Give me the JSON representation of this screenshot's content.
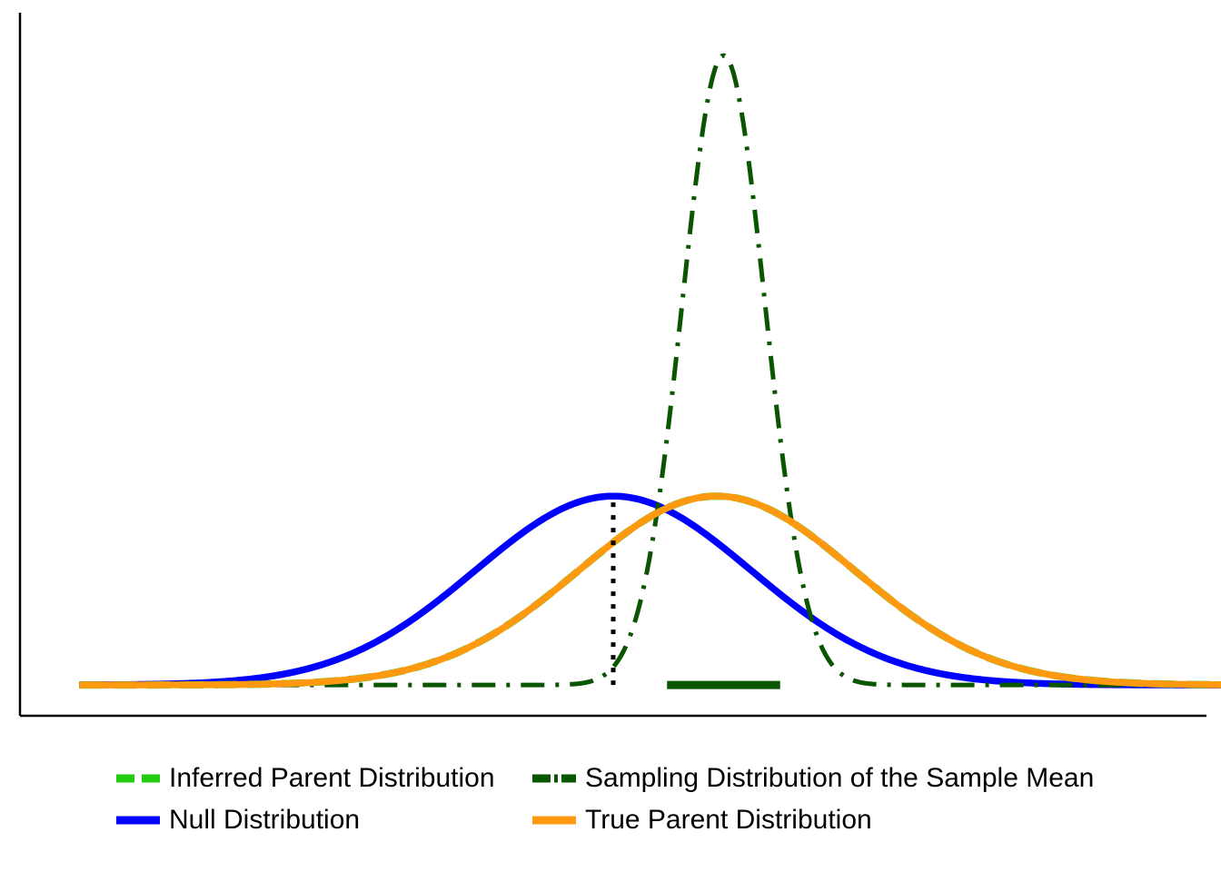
{
  "chart_data": {
    "type": "line",
    "title": "",
    "xlabel": "",
    "ylabel": "",
    "axes": {
      "ticks": "none",
      "grid": false
    },
    "xlim": [
      -4.3,
      4.3
    ],
    "ylim": [
      -0.065,
      1.42
    ],
    "legend": {
      "position": "bottom",
      "columns": 2,
      "entries": [
        "Inferred Parent Distribution",
        "Sampling Distribution of the Sample Mean",
        "Null Distribution",
        "True Parent Distribution"
      ]
    },
    "series": [
      {
        "name": "Inferred Parent Distribution",
        "color": "#22CC11",
        "style": "dashed",
        "distribution": "normal",
        "mean": 0.75,
        "sd": 1.0,
        "x_range": [
          -3.87,
          4.63
        ]
      },
      {
        "name": "Sampling Distribution of the Sample Mean",
        "color": "#0A5500",
        "style": "dashdot",
        "distribution": "normal",
        "mean": 0.8,
        "sd": 0.3,
        "x_range": [
          -3.87,
          4.63
        ]
      },
      {
        "name": "Null Distribution",
        "color": "#0000FF",
        "style": "solid",
        "distribution": "normal",
        "mean": 0.0,
        "sd": 1.0,
        "x_range": [
          -3.87,
          4.63
        ]
      },
      {
        "name": "True Parent Distribution",
        "color": "#FF9910",
        "style": "solid",
        "distribution": "normal",
        "mean": 0.75,
        "sd": 1.0,
        "x_range": [
          -3.87,
          4.63
        ]
      }
    ],
    "annotations": [
      {
        "kind": "vertical-dotted-line",
        "x": 0.0,
        "y_from": 0.0,
        "y_to": 0.399,
        "color": "#000000"
      },
      {
        "kind": "horizontal-bar",
        "x_from": 0.39,
        "x_to": 1.21,
        "y": 0.0,
        "color": "#0A5500"
      }
    ]
  }
}
